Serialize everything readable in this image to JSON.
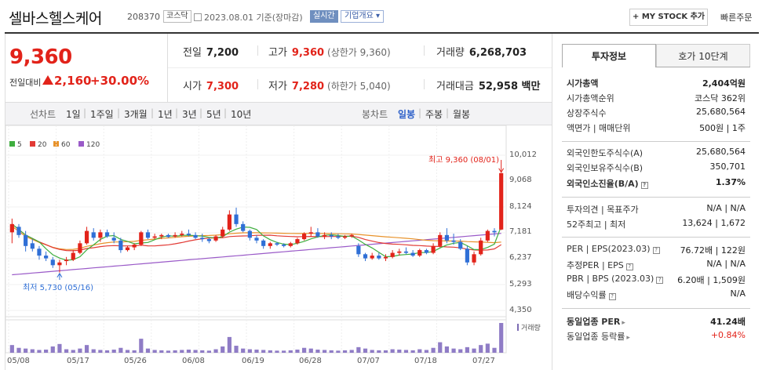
{
  "header": {
    "company": "셀바스헬스케어",
    "code": "208370",
    "market": "코스닥",
    "date": "2023.08.01 기준(장마감)",
    "realtime": "실시간",
    "corp_info": "기업개요 ▾",
    "mystock": "+ MY STOCK 추가",
    "quick_order": "빠른주문"
  },
  "quote": {
    "price": "9,360",
    "change_label": "전일대비",
    "change": "2,160",
    "change_pct": "+30.00%",
    "prev_close_label": "전일",
    "prev_close": "7,200",
    "high_label": "고가",
    "high": "9,360",
    "upper_limit": "(상한가 9,360)",
    "volume_label": "거래량",
    "volume": "6,268,703",
    "open_label": "시가",
    "open": "7,300",
    "low_label": "저가",
    "low": "7,280",
    "lower_limit": "(하한가 5,040)",
    "value_label": "거래대금",
    "value": "52,958 백만"
  },
  "period_bar": {
    "line_label": "선차트",
    "line_periods": [
      "1일",
      "1주일",
      "3개월",
      "1년",
      "3년",
      "5년",
      "10년"
    ],
    "candle_label": "봉차트",
    "candle_periods": [
      "일봉",
      "주봉",
      "월봉"
    ],
    "selected": "일봉"
  },
  "chart_data": {
    "type": "candlestick",
    "title": "",
    "legend": [
      "5",
      "20",
      "60",
      "120"
    ],
    "legend_colors": [
      "#3fae3f",
      "#e23a35",
      "#e8922a",
      "#9a5ac8"
    ],
    "up_color": "#e2231a",
    "down_color": "#2f6fd6",
    "y_ticks": [
      "10,012",
      "9,068",
      "8,124",
      "7,181",
      "6,237",
      "5,293",
      "4,350"
    ],
    "ylim": [
      4350,
      10012
    ],
    "x_ticks": [
      "05/08",
      "05/17",
      "05/26",
      "06/08",
      "06/19",
      "06/28",
      "07/07",
      "07/18",
      "07/27"
    ],
    "high_annotation": "최고 9,360 (08/01)",
    "low_annotation": "최저 5,730 (05/16)",
    "volume_label": "거래량",
    "candles": [
      {
        "o": 7200,
        "h": 7700,
        "l": 6800,
        "c": 7500
      },
      {
        "o": 7400,
        "h": 7500,
        "l": 7000,
        "c": 7100
      },
      {
        "o": 7100,
        "h": 7250,
        "l": 6500,
        "c": 6700
      },
      {
        "o": 6800,
        "h": 6950,
        "l": 6500,
        "c": 6600
      },
      {
        "o": 6600,
        "h": 6700,
        "l": 6200,
        "c": 6350
      },
      {
        "o": 6350,
        "h": 6500,
        "l": 6150,
        "c": 6250
      },
      {
        "o": 6200,
        "h": 6300,
        "l": 5900,
        "c": 6000
      },
      {
        "o": 6000,
        "h": 6200,
        "l": 5730,
        "c": 6100
      },
      {
        "o": 6150,
        "h": 6300,
        "l": 6000,
        "c": 6200
      },
      {
        "o": 6200,
        "h": 6550,
        "l": 6150,
        "c": 6450
      },
      {
        "o": 6450,
        "h": 6900,
        "l": 6400,
        "c": 6800
      },
      {
        "o": 6800,
        "h": 7400,
        "l": 6750,
        "c": 7250
      },
      {
        "o": 7200,
        "h": 7350,
        "l": 6900,
        "c": 7000
      },
      {
        "o": 7000,
        "h": 7300,
        "l": 6850,
        "c": 7200
      },
      {
        "o": 7200,
        "h": 7300,
        "l": 7000,
        "c": 7050
      },
      {
        "o": 7000,
        "h": 7200,
        "l": 6800,
        "c": 6900
      },
      {
        "o": 6900,
        "h": 7000,
        "l": 6450,
        "c": 6550
      },
      {
        "o": 6550,
        "h": 6700,
        "l": 6500,
        "c": 6650
      },
      {
        "o": 6650,
        "h": 6800,
        "l": 6550,
        "c": 6750
      },
      {
        "o": 6750,
        "h": 7250,
        "l": 6700,
        "c": 7200
      },
      {
        "o": 7200,
        "h": 7300,
        "l": 6950,
        "c": 7000
      },
      {
        "o": 7000,
        "h": 7150,
        "l": 6950,
        "c": 7050
      },
      {
        "o": 7050,
        "h": 7150,
        "l": 6950,
        "c": 7100
      },
      {
        "o": 7100,
        "h": 7150,
        "l": 7000,
        "c": 7030
      },
      {
        "o": 7050,
        "h": 7200,
        "l": 7000,
        "c": 7100
      },
      {
        "o": 7100,
        "h": 7250,
        "l": 7050,
        "c": 7150
      },
      {
        "o": 7150,
        "h": 7300,
        "l": 7050,
        "c": 7100
      },
      {
        "o": 7100,
        "h": 7200,
        "l": 6950,
        "c": 7000
      },
      {
        "o": 7000,
        "h": 7150,
        "l": 6850,
        "c": 6950
      },
      {
        "o": 6950,
        "h": 7000,
        "l": 6800,
        "c": 6880
      },
      {
        "o": 6900,
        "h": 7100,
        "l": 6850,
        "c": 7050
      },
      {
        "o": 7050,
        "h": 7400,
        "l": 7000,
        "c": 7300
      },
      {
        "o": 7300,
        "h": 8000,
        "l": 7250,
        "c": 7850
      },
      {
        "o": 7850,
        "h": 8100,
        "l": 7400,
        "c": 7500
      },
      {
        "o": 7500,
        "h": 7600,
        "l": 7200,
        "c": 7250
      },
      {
        "o": 7250,
        "h": 7300,
        "l": 6900,
        "c": 7000
      },
      {
        "o": 7000,
        "h": 7100,
        "l": 6800,
        "c": 6900
      },
      {
        "o": 6900,
        "h": 6950,
        "l": 6600,
        "c": 6700
      },
      {
        "o": 6700,
        "h": 6850,
        "l": 6600,
        "c": 6800
      },
      {
        "o": 6800,
        "h": 6850,
        "l": 6700,
        "c": 6750
      },
      {
        "o": 6750,
        "h": 6800,
        "l": 6650,
        "c": 6700
      },
      {
        "o": 6700,
        "h": 6850,
        "l": 6650,
        "c": 6800
      },
      {
        "o": 6800,
        "h": 7000,
        "l": 6750,
        "c": 6950
      },
      {
        "o": 6950,
        "h": 7200,
        "l": 6900,
        "c": 7150
      },
      {
        "o": 7150,
        "h": 7400,
        "l": 7050,
        "c": 7200
      },
      {
        "o": 7200,
        "h": 7350,
        "l": 7000,
        "c": 7050
      },
      {
        "o": 7050,
        "h": 7200,
        "l": 6950,
        "c": 7100
      },
      {
        "o": 7100,
        "h": 7200,
        "l": 6950,
        "c": 7050
      },
      {
        "o": 7050,
        "h": 7150,
        "l": 6950,
        "c": 7000
      },
      {
        "o": 7000,
        "h": 7100,
        "l": 6950,
        "c": 7050
      },
      {
        "o": 7050,
        "h": 7150,
        "l": 7000,
        "c": 7100
      },
      {
        "o": 6700,
        "h": 6800,
        "l": 6300,
        "c": 6400
      },
      {
        "o": 6400,
        "h": 6450,
        "l": 6150,
        "c": 6250
      },
      {
        "o": 6250,
        "h": 6450,
        "l": 6200,
        "c": 6350
      },
      {
        "o": 6350,
        "h": 6450,
        "l": 6200,
        "c": 6250
      },
      {
        "o": 6250,
        "h": 6400,
        "l": 6150,
        "c": 6300
      },
      {
        "o": 6300,
        "h": 6550,
        "l": 6250,
        "c": 6450
      },
      {
        "o": 6450,
        "h": 6600,
        "l": 6350,
        "c": 6500
      },
      {
        "o": 6500,
        "h": 6650,
        "l": 6400,
        "c": 6450
      },
      {
        "o": 6450,
        "h": 6550,
        "l": 6300,
        "c": 6350
      },
      {
        "o": 6350,
        "h": 6600,
        "l": 6300,
        "c": 6550
      },
      {
        "o": 6550,
        "h": 6600,
        "l": 6400,
        "c": 6450
      },
      {
        "o": 6450,
        "h": 6800,
        "l": 6400,
        "c": 6700
      },
      {
        "o": 6700,
        "h": 7200,
        "l": 6650,
        "c": 7100
      },
      {
        "o": 7100,
        "h": 7350,
        "l": 6800,
        "c": 6900
      },
      {
        "o": 6900,
        "h": 7150,
        "l": 6750,
        "c": 6850
      },
      {
        "o": 6850,
        "h": 6950,
        "l": 6550,
        "c": 6600
      },
      {
        "o": 6600,
        "h": 6700,
        "l": 6000,
        "c": 6100
      },
      {
        "o": 6100,
        "h": 6500,
        "l": 6000,
        "c": 6400
      },
      {
        "o": 6400,
        "h": 7000,
        "l": 6350,
        "c": 6900
      },
      {
        "o": 6900,
        "h": 7300,
        "l": 6850,
        "c": 7250
      },
      {
        "o": 7250,
        "h": 7350,
        "l": 7050,
        "c": 7200
      },
      {
        "o": 7300,
        "h": 9360,
        "l": 7280,
        "c": 9360
      }
    ],
    "volumes": [
      22,
      14,
      12,
      10,
      8,
      9,
      18,
      25,
      10,
      8,
      12,
      22,
      10,
      8,
      7,
      9,
      14,
      8,
      7,
      40,
      12,
      8,
      7,
      6,
      7,
      8,
      9,
      8,
      7,
      6,
      10,
      18,
      45,
      20,
      12,
      10,
      9,
      8,
      7,
      6,
      6,
      7,
      9,
      14,
      12,
      9,
      8,
      7,
      6,
      7,
      8,
      16,
      12,
      8,
      7,
      7,
      10,
      9,
      8,
      7,
      10,
      8,
      14,
      30,
      18,
      12,
      10,
      16,
      12,
      22,
      26,
      14,
      85
    ]
  },
  "side": {
    "tab_active": "투자정보",
    "tab_other": "호가 10단계",
    "rows1": [
      {
        "k": "시가총액",
        "v": "2,404억원",
        "bold": true
      },
      {
        "k": "시가총액순위",
        "v": "코스닥 362위"
      },
      {
        "k": "상장주식수",
        "v": "25,680,564"
      },
      {
        "k": "액면가 | 매매단위",
        "v": "500원 | 1주"
      }
    ],
    "rows2": [
      {
        "k": "외국인한도주식수(A)",
        "v": "25,680,564"
      },
      {
        "k": "외국인보유주식수(B)",
        "v": "350,701"
      },
      {
        "k": "외국인소진율(B/A)",
        "v": "1.37%",
        "bold": true
      }
    ],
    "rows3": [
      {
        "k": "투자의견 | 목표주가",
        "v": "N/A | N/A"
      },
      {
        "k": "52주최고 | 최저",
        "v": "13,624 | 1,672"
      }
    ],
    "rows4": [
      {
        "k": "PER | EPS(2023.03)",
        "v": "76.72배 | 122원"
      },
      {
        "k": "추정PER | EPS",
        "v": "N/A | N/A"
      },
      {
        "k": "PBR | BPS (2023.03)",
        "v": "6.20배 | 1,509원"
      },
      {
        "k": "배당수익률",
        "v": "N/A"
      }
    ],
    "rows5": [
      {
        "k": "동일업종 PER",
        "v": "41.24배",
        "bold": true
      },
      {
        "k": "동일업종 등락률",
        "v": "+0.84%",
        "red": true
      }
    ]
  }
}
